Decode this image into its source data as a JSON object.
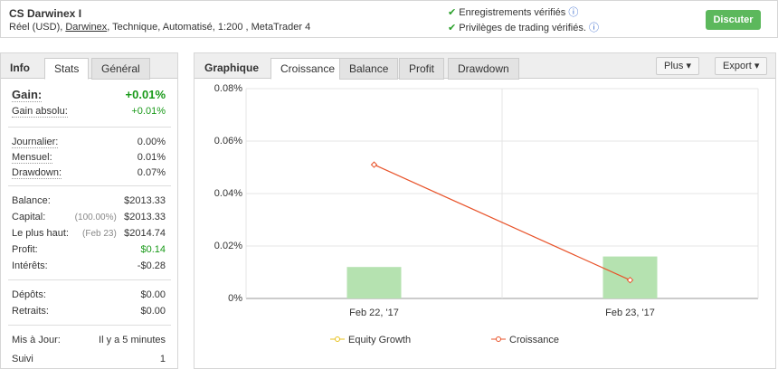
{
  "header": {
    "title": "CS Darwinex I",
    "subtitle_prefix": "Réel (USD), ",
    "subtitle_link": "Darwinex",
    "subtitle_suffix": ", Technique, Automatisé, 1:200 , MetaTrader 4",
    "checks": [
      "Enregistrements vérifiés",
      "Privilèges de trading vérifiés."
    ],
    "button": "Discuter"
  },
  "left_panel": {
    "tabs": [
      "Info",
      "Stats",
      "Général"
    ],
    "groups": [
      [
        {
          "label": "Gain:",
          "value": "+0.01%",
          "color": "#1a9a1a"
        },
        {
          "label": "Gain absolu:",
          "value": "+0.01%",
          "color": "#1a9a1a"
        }
      ],
      [
        {
          "label": "Journalier:",
          "value": "0.00%"
        },
        {
          "label": "Mensuel:",
          "value": "0.01%"
        },
        {
          "label": "Drawdown:",
          "value": "0.07%"
        }
      ],
      [
        {
          "label": "Balance:",
          "value": "$2013.33"
        },
        {
          "label": "Capital:",
          "note": "(100.00%)",
          "value": "$2013.33"
        },
        {
          "label": "Le plus haut:",
          "note": "(Feb 23)",
          "value": "$2014.74"
        },
        {
          "label": "Profit:",
          "value": "$0.14",
          "color": "#1a9a1a"
        },
        {
          "label": "Intérêts:",
          "value": "-$0.28"
        }
      ],
      [
        {
          "label": "Dépôts:",
          "value": "$0.00"
        },
        {
          "label": "Retraits:",
          "value": "$0.00"
        }
      ],
      [
        {
          "label": "Mis à Jour:",
          "value": "Il y a 5 minutes"
        },
        {
          "label": "Suivi",
          "value": "1"
        }
      ]
    ]
  },
  "chart_panel": {
    "title": "Graphique",
    "tabs": [
      "Croissance",
      "Balance",
      "Profit",
      "Drawdown"
    ],
    "buttons": [
      "Plus",
      "Export"
    ]
  },
  "chart_data": {
    "type": "bar",
    "categories": [
      "Feb 22, '17",
      "Feb 23, '17"
    ],
    "series": [
      {
        "name": "Equity Growth",
        "type": "bar",
        "color": "#b5e2b0",
        "legend_color": "#e8c21e",
        "values": [
          0.012,
          0.016
        ]
      },
      {
        "name": "Croissance",
        "type": "line",
        "color": "#e8532a",
        "values": [
          0.051,
          0.007
        ]
      }
    ],
    "ylim": [
      0,
      0.08
    ],
    "yticks": [
      {
        "value": 0,
        "label": "0%"
      },
      {
        "value": 0.02,
        "label": "0.02%"
      },
      {
        "value": 0.04,
        "label": "0.04%"
      },
      {
        "value": 0.06,
        "label": "0.06%"
      },
      {
        "value": 0.08,
        "label": "0.08%"
      }
    ],
    "grid": true
  }
}
